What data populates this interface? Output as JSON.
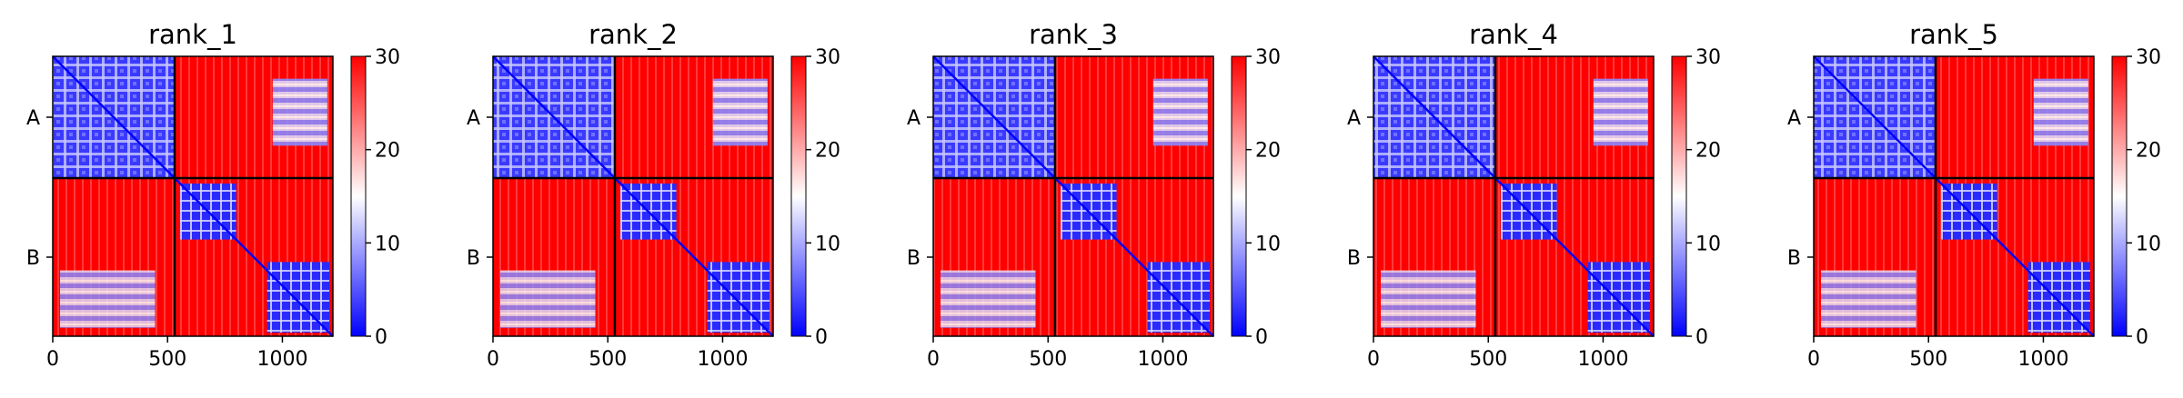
{
  "chart_data": [
    {
      "type": "heatmap",
      "title": "rank_1",
      "chains": [
        "A",
        "B"
      ],
      "xticks": [
        0,
        500,
        1000
      ],
      "xlim": [
        0,
        1220
      ],
      "colorbar": {
        "ticks": [
          0,
          10,
          20,
          30
        ],
        "range": [
          0,
          30
        ],
        "colors": [
          "#0000ff",
          "#ffffff",
          "#ff0000"
        ]
      }
    },
    {
      "type": "heatmap",
      "title": "rank_2",
      "chains": [
        "A",
        "B"
      ],
      "xticks": [
        0,
        500,
        1000
      ],
      "xlim": [
        0,
        1220
      ],
      "colorbar": {
        "ticks": [
          0,
          10,
          20,
          30
        ],
        "range": [
          0,
          30
        ],
        "colors": [
          "#0000ff",
          "#ffffff",
          "#ff0000"
        ]
      }
    },
    {
      "type": "heatmap",
      "title": "rank_3",
      "chains": [
        "A",
        "B"
      ],
      "xticks": [
        0,
        500,
        1000
      ],
      "xlim": [
        0,
        1220
      ],
      "colorbar": {
        "ticks": [
          0,
          10,
          20,
          30
        ],
        "range": [
          0,
          30
        ],
        "colors": [
          "#0000ff",
          "#ffffff",
          "#ff0000"
        ]
      }
    },
    {
      "type": "heatmap",
      "title": "rank_4",
      "chains": [
        "A",
        "B"
      ],
      "xticks": [
        0,
        500,
        1000
      ],
      "xlim": [
        0,
        1220
      ],
      "colorbar": {
        "ticks": [
          0,
          10,
          20,
          30
        ],
        "range": [
          0,
          30
        ],
        "colors": [
          "#0000ff",
          "#ffffff",
          "#ff0000"
        ]
      }
    },
    {
      "type": "heatmap",
      "title": "rank_5",
      "chains": [
        "A",
        "B"
      ],
      "xticks": [
        0,
        500,
        1000
      ],
      "xlim": [
        0,
        1220
      ],
      "colorbar": {
        "ticks": [
          0,
          10,
          20,
          30
        ],
        "range": [
          0,
          30
        ],
        "colors": [
          "#0000ff",
          "#ffffff",
          "#ff0000"
        ]
      }
    }
  ]
}
